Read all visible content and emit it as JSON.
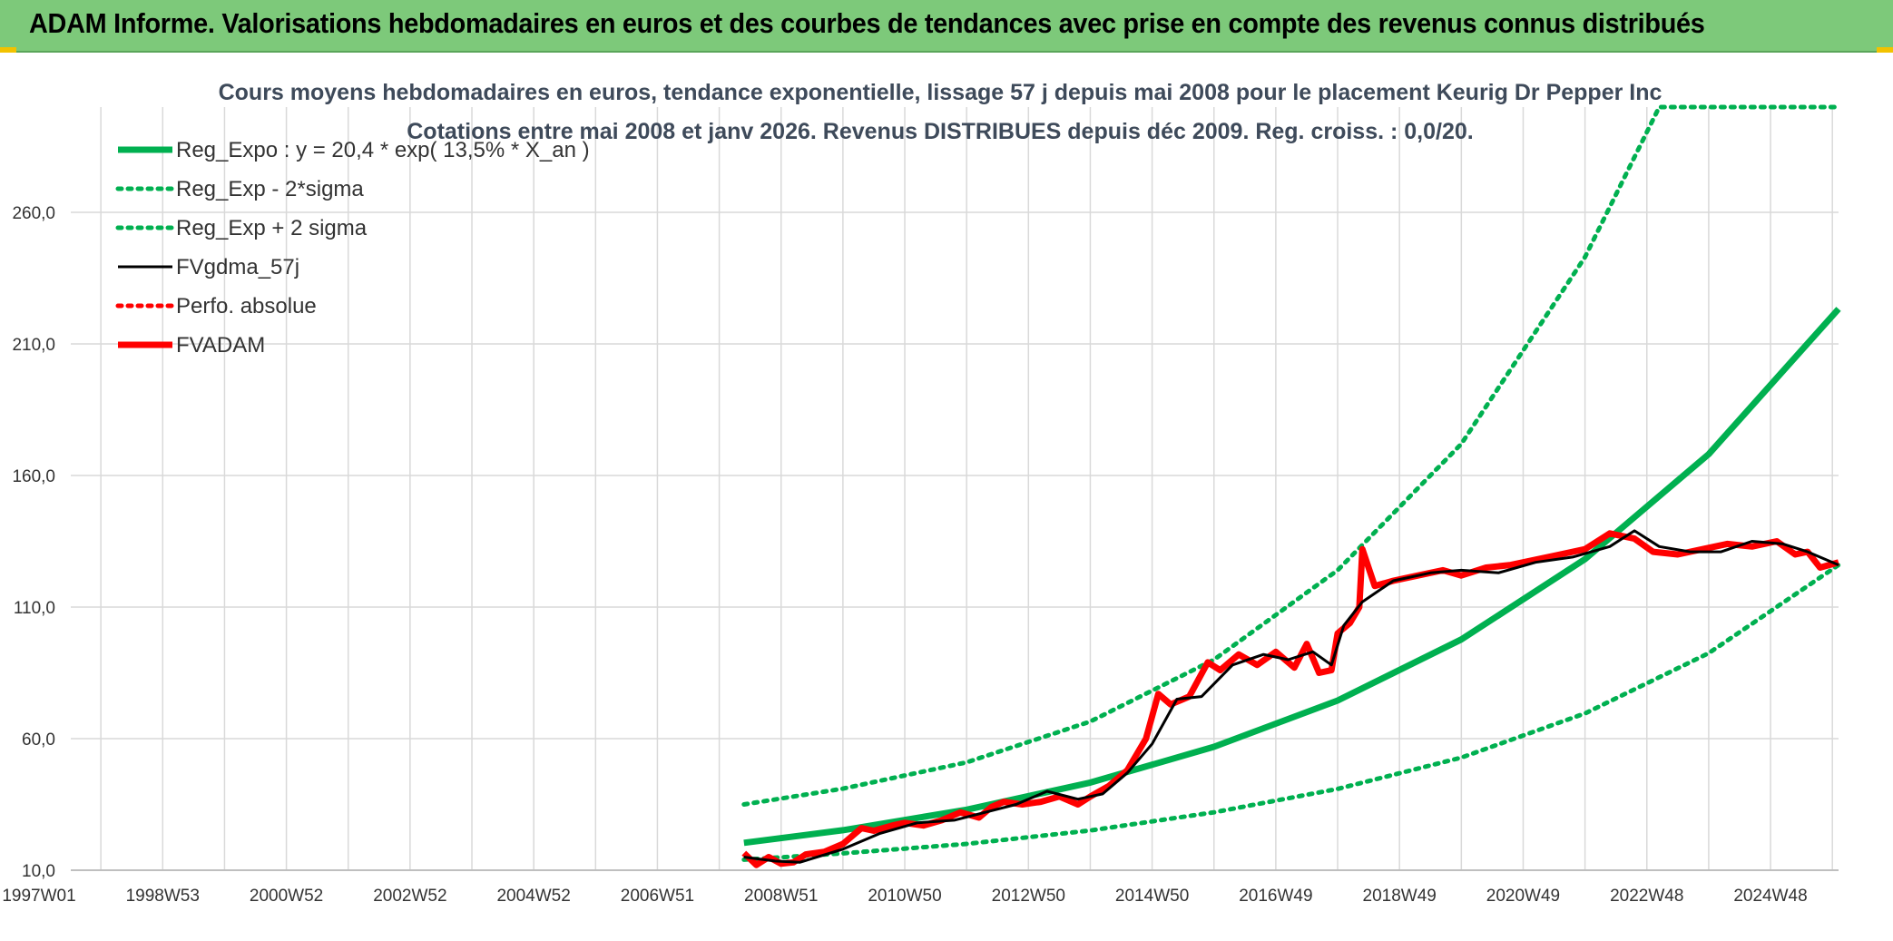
{
  "banner": {
    "title": "ADAM Informe. Valorisations hebdomadaires en euros et des courbes de tendances avec prise en compte des revenus connus distribués"
  },
  "colors": {
    "banner_bg": "#7dc97a",
    "trend": "#00b050",
    "fv_gdma": "#000000",
    "fvadam": "#ff0000",
    "perfo": "#ff0000"
  },
  "chart_data": {
    "type": "line",
    "title": "Cours moyens hebdomadaires en euros, tendance exponentielle, lissage 57 j depuis mai 2008 pour le placement Keurig Dr Pepper Inc",
    "subtitle": "Cotations entre mai 2008 et janv 2026. Revenus DISTRIBUES depuis déc 2009. Reg. croiss. : 0,0/20.",
    "xlabel": "",
    "ylabel": "",
    "x_range": [
      1997.0,
      2026.1
    ],
    "ylim": [
      10,
      300
    ],
    "y_ticks": [
      "10,0",
      "60,0",
      "110,0",
      "160,0",
      "210,0",
      "260,0"
    ],
    "y_tick_values": [
      10,
      60,
      110,
      160,
      210,
      260
    ],
    "x_ticks": [
      "1997W01",
      "1998W53",
      "2000W52",
      "2002W52",
      "2004W52",
      "2006W51",
      "2008W51",
      "2010W50",
      "2012W50",
      "2014W50",
      "2016W49",
      "2018W49",
      "2020W49",
      "2022W48",
      "2024W48"
    ],
    "x_tick_values": [
      1997.0,
      1999.0,
      2001.0,
      2003.0,
      2005.0,
      2007.0,
      2009.0,
      2011.0,
      2013.0,
      2015.0,
      2017.0,
      2019.0,
      2021.0,
      2023.0,
      2025.0
    ],
    "grid": true,
    "legend_position": "top-left",
    "series": [
      {
        "name": "Reg_Expo : y = 20,4 * exp( 13,5% *  X_an )",
        "style": "solid-thick",
        "color": "#00b050",
        "x": [
          2008.4,
          2010.0,
          2012.0,
          2014.0,
          2016.0,
          2018.0,
          2020.0,
          2022.0,
          2024.0,
          2026.1
        ],
        "values": [
          20.4,
          25.2,
          33.0,
          43.3,
          56.9,
          74.5,
          97.7,
          128.2,
          168.1,
          223.3
        ]
      },
      {
        "name": "Reg_Exp - 2*sigma",
        "style": "dotted",
        "color": "#00b050",
        "x": [
          2008.4,
          2010.0,
          2012.0,
          2014.0,
          2016.0,
          2018.0,
          2020.0,
          2022.0,
          2024.0,
          2026.1
        ],
        "values": [
          14.0,
          16.4,
          20.0,
          25.1,
          32.0,
          40.9,
          52.8,
          69.6,
          92.5,
          126.0
        ]
      },
      {
        "name": "Reg_Exp + 2 sigma",
        "style": "dotted",
        "color": "#00b050",
        "x": [
          2008.4,
          2010.0,
          2012.0,
          2014.0,
          2016.0,
          2018.0,
          2020.0,
          2022.0,
          2023.2,
          2026.1
        ],
        "values": [
          35.0,
          41.0,
          51.0,
          66.5,
          90.0,
          124.0,
          172.0,
          243.0,
          300.0,
          300.0
        ]
      },
      {
        "name": "FVgdma_57j",
        "style": "solid",
        "color": "#000000",
        "x": [
          2008.4,
          2008.9,
          2009.3,
          2010.0,
          2010.6,
          2011.2,
          2011.8,
          2012.3,
          2012.8,
          2013.3,
          2013.8,
          2014.2,
          2014.6,
          2015.0,
          2015.4,
          2015.8,
          2016.3,
          2016.8,
          2017.2,
          2017.6,
          2017.9,
          2018.1,
          2018.4,
          2018.9,
          2019.5,
          2020.0,
          2020.6,
          2021.2,
          2021.8,
          2022.4,
          2022.8,
          2023.2,
          2023.7,
          2024.2,
          2024.7,
          2025.2,
          2025.6,
          2026.1
        ],
        "values": [
          15.0,
          13.5,
          13.0,
          18.0,
          24.0,
          28.0,
          29.0,
          32.0,
          35.0,
          40.0,
          37.0,
          39.0,
          47.0,
          58.0,
          75.0,
          76.0,
          88.0,
          92.0,
          90.0,
          93.0,
          88.0,
          103.0,
          112.0,
          120.0,
          123.0,
          124.0,
          123.0,
          127.0,
          129.0,
          133.0,
          139.0,
          133.0,
          131.0,
          131.0,
          135.0,
          134.0,
          131.0,
          126.0
        ]
      },
      {
        "name": "Perfo. absolue",
        "style": "dotted",
        "color": "#ff0000",
        "x": [],
        "values": []
      },
      {
        "name": "FVADAM",
        "style": "solid-thick",
        "color": "#ff0000",
        "x": [
          2008.4,
          2008.6,
          2008.8,
          2009.0,
          2009.2,
          2009.4,
          2009.7,
          2010.0,
          2010.3,
          2010.5,
          2010.8,
          2011.0,
          2011.3,
          2011.6,
          2011.9,
          2012.2,
          2012.4,
          2012.6,
          2012.9,
          2013.2,
          2013.5,
          2013.8,
          2014.0,
          2014.3,
          2014.6,
          2014.9,
          2015.1,
          2015.3,
          2015.6,
          2015.9,
          2016.1,
          2016.4,
          2016.7,
          2017.0,
          2017.3,
          2017.5,
          2017.7,
          2017.9,
          2018.0,
          2018.2,
          2018.35,
          2018.4,
          2018.6,
          2018.9,
          2019.3,
          2019.7,
          2020.0,
          2020.4,
          2020.8,
          2021.2,
          2021.6,
          2022.0,
          2022.4,
          2022.8,
          2023.1,
          2023.5,
          2023.9,
          2024.3,
          2024.7,
          2025.1,
          2025.4,
          2025.6,
          2025.8,
          2026.1
        ],
        "values": [
          16.5,
          12.0,
          15.0,
          12.5,
          13.0,
          16.0,
          17.0,
          20.0,
          26.0,
          25.0,
          27.0,
          28.0,
          27.0,
          29.0,
          32.0,
          30.0,
          34.0,
          36.0,
          35.0,
          36.0,
          38.0,
          35.0,
          38.0,
          42.0,
          48.0,
          60.0,
          77.0,
          73.0,
          76.0,
          89.0,
          86.0,
          92.0,
          88.0,
          93.0,
          87.0,
          96.0,
          85.0,
          86.0,
          100.0,
          104.0,
          110.0,
          132.0,
          118.0,
          120.0,
          122.0,
          124.0,
          122.0,
          125.0,
          126.0,
          128.0,
          130.0,
          132.0,
          138.0,
          136.0,
          131.0,
          130.0,
          132.0,
          134.0,
          133.0,
          135.0,
          130.0,
          131.0,
          125.0,
          127.0
        ]
      }
    ]
  }
}
